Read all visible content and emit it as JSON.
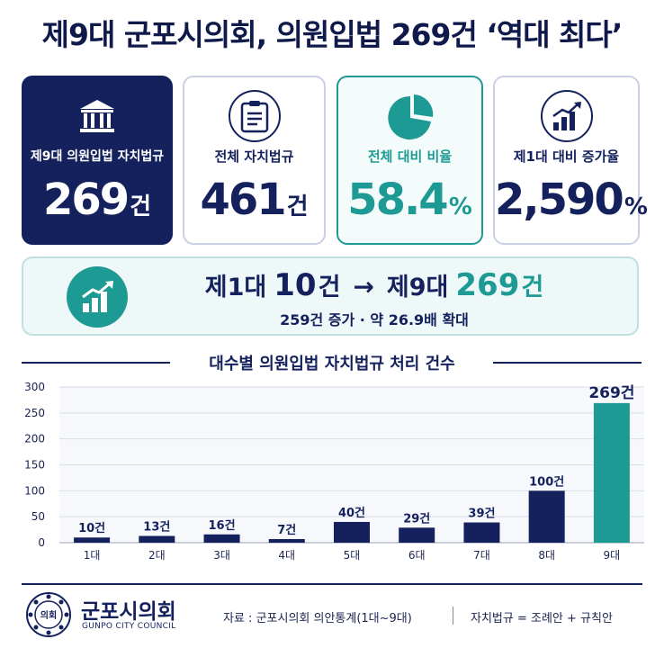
{
  "title": "제9대 군포시의회, 의원입법 269건 ‘역대 최다’",
  "cards": [
    {
      "label": "제9대 의원입법 자치법규",
      "value": "269",
      "unit": "건",
      "icon": "government-building-icon"
    },
    {
      "label": "전체 자치법규",
      "value": "461",
      "unit": "건",
      "icon": "clipboard-icon"
    },
    {
      "label": "전체 대비 비율",
      "value": "58.4",
      "unit": "%",
      "icon": "pie-chart-icon"
    },
    {
      "label": "제1대 대비 증가율",
      "value": "2,590",
      "unit": "%",
      "icon": "growth-chart-icon"
    }
  ],
  "banner": {
    "from_label": "제1대",
    "from_value": "10",
    "arrow": "→",
    "to_label": "제9대",
    "to_value": "269",
    "unit": "건",
    "sub": "259건 증가 · 약 26.9배 확대"
  },
  "chart_data": {
    "type": "bar",
    "title": "대수별 의원입법 자치법규 처리 건수",
    "categories": [
      "1대",
      "2대",
      "3대",
      "4대",
      "5대",
      "6대",
      "7대",
      "8대",
      "9대"
    ],
    "values": [
      10,
      13,
      16,
      7,
      40,
      29,
      39,
      100,
      269
    ],
    "value_labels": [
      "10건",
      "13건",
      "16건",
      "7건",
      "40건",
      "29건",
      "39건",
      "100건",
      "269건"
    ],
    "ylim": [
      0,
      300
    ],
    "yticks": [
      0,
      50,
      100,
      150,
      200,
      250,
      300
    ],
    "grid": true,
    "colors": {
      "default": "#14215d",
      "highlight": "#1e9a94"
    },
    "highlight_index": 8
  },
  "footer": {
    "seal_text": "의회",
    "brand_ko": "군포시의회",
    "brand_en": "GUNPO CITY COUNCIL",
    "source": "자료 : 군포시의회 의안통계(1대~9대)",
    "note": "자치법규 = 조례안 + 규칙안"
  }
}
